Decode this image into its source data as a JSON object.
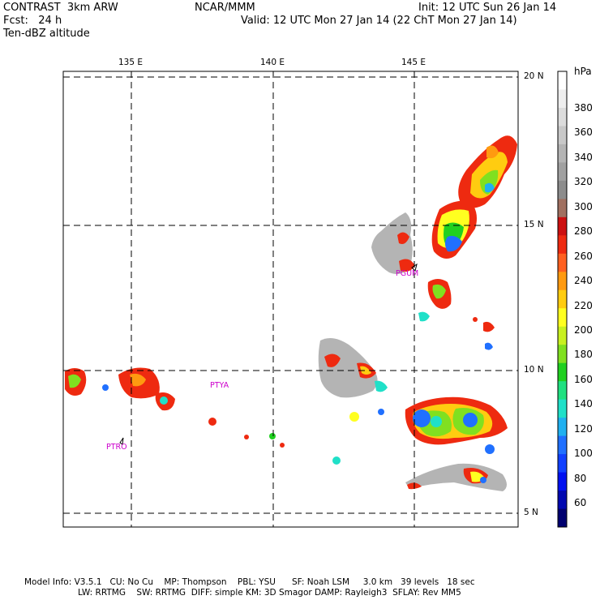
{
  "header": {
    "line1_left": "CONTRAST  3km ARW",
    "line2_left": "Fcst:   24 h",
    "line3_left": "Ten-dBZ altitude",
    "center": "NCAR/MMM",
    "init": "Init: 12 UTC Sun 26 Jan 14",
    "valid": "Valid: 12 UTC Mon 27 Jan 14 (22 ChT Mon 27 Jan 14)"
  },
  "map": {
    "lon_labels": [
      "135 E",
      "140 E",
      "145 E"
    ],
    "lat_labels": [
      "20 N",
      "15 N",
      "10 N",
      "5 N"
    ],
    "stations": [
      "PGUM",
      "PTYA",
      "PTRO"
    ]
  },
  "colorbar": {
    "unit": "hPa",
    "labels": [
      "380",
      "360",
      "340",
      "320",
      "300",
      "280",
      "260",
      "240",
      "220",
      "200",
      "180",
      "160",
      "140",
      "120",
      "100",
      "80",
      "60"
    ],
    "colors": [
      "#ffffff",
      "#eeeeee",
      "#dcdcdc",
      "#c8c8c8",
      "#b4b4b4",
      "#a0a0a0",
      "#8c8c8c",
      "#a07060",
      "#cc1010",
      "#ee2a10",
      "#ff6020",
      "#ff9a10",
      "#ffcc10",
      "#ffff20",
      "#c8f020",
      "#80e020",
      "#20d020",
      "#20e080",
      "#20e0c8",
      "#20b0f0",
      "#2070ff",
      "#1040ff",
      "#0010f0",
      "#0008b0",
      "#000070"
    ],
    "colors_legend": "colorbar swatch colors top to bottom"
  },
  "footer": {
    "line1": "Model Info: V3.5.1   CU: No Cu    MP: Thompson    PBL: YSU      SF: Noah LSM     3.0 km   39 levels   18 sec",
    "line2": "LW: RRTMG    SW: RRTMG  DIFF: simple KM: 3D Smagor DAMP: Rayleigh3  SFLAY: Rev MM5"
  }
}
